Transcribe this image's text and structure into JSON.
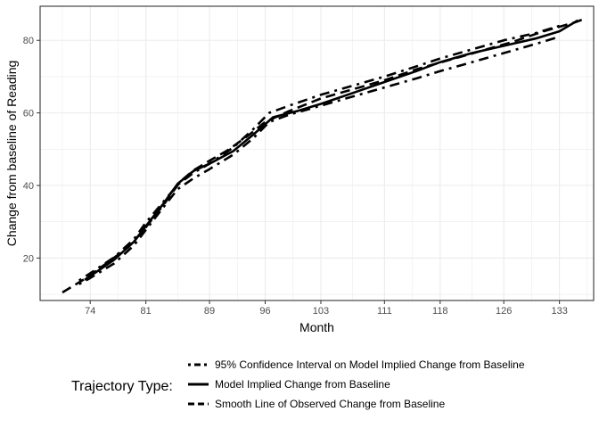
{
  "chart_data": {
    "type": "line",
    "xlabel": "Month",
    "ylabel": "Change from baseline of Reading",
    "xlim": [
      67.7,
      137.3
    ],
    "ylim": [
      8.3,
      89.4
    ],
    "x_ticks": [
      74,
      81,
      89,
      96,
      103,
      111,
      118,
      126,
      133
    ],
    "y_ticks": [
      20,
      40,
      60,
      80
    ],
    "grid": true,
    "legend": {
      "title": "Trajectory Type:",
      "position": "bottom",
      "entries": [
        "95% Confidence Interval on Model Implied Change from Baseline",
        "Model Implied Change from Baseline",
        "Smooth Line of Observed Change from Baseline"
      ]
    },
    "series": [
      {
        "name": "95% Confidence Interval on Model Implied Change from Baseline",
        "style": "dotdash",
        "points": [
          [
            72.6,
            13.8
          ],
          [
            74,
            15.8
          ],
          [
            77,
            20.2
          ],
          [
            79.5,
            25.2
          ],
          [
            81,
            29.8
          ],
          [
            83.2,
            35.5
          ],
          [
            85,
            40.2
          ],
          [
            87,
            43.5
          ],
          [
            89,
            46.0
          ],
          [
            92,
            50.5
          ],
          [
            94.5,
            55.5
          ],
          [
            96.5,
            60.0
          ],
          [
            99,
            62.0
          ],
          [
            103,
            65.0
          ],
          [
            107,
            67.5
          ],
          [
            111,
            70.0
          ],
          [
            115,
            72.8
          ],
          [
            118,
            75.0
          ],
          [
            122,
            77.5
          ],
          [
            126,
            80.0
          ],
          [
            130,
            82.0
          ],
          [
            133,
            84.0
          ]
        ]
      },
      {
        "name": "95% Confidence Interval on Model Implied Change from Baseline",
        "style": "dotdash",
        "points": [
          [
            72.6,
            12.8
          ],
          [
            74,
            14.5
          ],
          [
            77,
            18.5
          ],
          [
            79.5,
            23.5
          ],
          [
            81,
            27.8
          ],
          [
            83.2,
            34.0
          ],
          [
            85,
            39.0
          ],
          [
            87,
            42.0
          ],
          [
            89,
            44.5
          ],
          [
            92,
            48.5
          ],
          [
            94.5,
            53.0
          ],
          [
            96.5,
            57.5
          ],
          [
            99,
            59.5
          ],
          [
            103,
            62.0
          ],
          [
            107,
            64.5
          ],
          [
            111,
            67.0
          ],
          [
            115,
            69.5
          ],
          [
            118,
            71.5
          ],
          [
            122,
            74.0
          ],
          [
            126,
            76.5
          ],
          [
            130,
            79.0
          ],
          [
            133,
            81.0
          ]
        ]
      },
      {
        "name": "Model Implied Change from Baseline",
        "style": "solid",
        "points": [
          [
            73.3,
            14.0
          ],
          [
            74,
            15.0
          ],
          [
            77,
            19.5
          ],
          [
            79.5,
            24.5
          ],
          [
            81,
            28.8
          ],
          [
            83.2,
            35.0
          ],
          [
            85,
            40.5
          ],
          [
            87,
            44.0
          ],
          [
            89,
            46.0
          ],
          [
            92,
            49.5
          ],
          [
            94.5,
            54.0
          ],
          [
            97,
            58.8
          ],
          [
            100,
            60.5
          ],
          [
            103,
            62.5
          ],
          [
            107,
            65.5
          ],
          [
            111,
            68.5
          ],
          [
            115,
            71.5
          ],
          [
            118,
            74.0
          ],
          [
            122,
            76.5
          ],
          [
            126,
            78.5
          ],
          [
            130,
            80.5
          ],
          [
            133,
            82.5
          ],
          [
            135.3,
            85.5
          ]
        ]
      },
      {
        "name": "Smooth Line of Observed Change from Baseline",
        "style": "dashed",
        "points": [
          [
            70.5,
            10.5
          ],
          [
            73.5,
            14.5
          ],
          [
            76,
            18.5
          ],
          [
            78.8,
            23.0
          ],
          [
            81,
            28.5
          ],
          [
            83.5,
            35.5
          ],
          [
            85.3,
            41.0
          ],
          [
            87,
            44.2
          ],
          [
            89,
            46.8
          ],
          [
            91.5,
            50.0
          ],
          [
            94,
            54.0
          ],
          [
            96,
            57.5
          ],
          [
            99,
            60.5
          ],
          [
            103,
            64.0
          ],
          [
            107,
            66.5
          ],
          [
            111,
            69.0
          ],
          [
            115,
            72.0
          ],
          [
            119,
            74.5
          ],
          [
            123,
            77.0
          ],
          [
            127,
            79.5
          ],
          [
            131,
            82.5
          ],
          [
            135,
            85.0
          ],
          [
            136,
            85.8
          ]
        ]
      }
    ]
  }
}
